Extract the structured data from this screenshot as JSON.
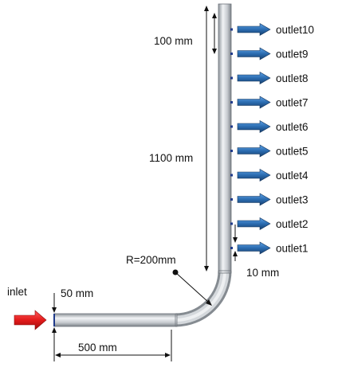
{
  "labels": {
    "inlet": "inlet",
    "pipe_diameter": "50 mm",
    "horizontal_length": "500 mm",
    "bend_radius": "R=200mm",
    "vertical_length": "1100 mm",
    "outlet_spacing": "100 mm",
    "first_outlet_offset": "10 mm"
  },
  "outlets": [
    {
      "label": "outlet10"
    },
    {
      "label": "outlet9"
    },
    {
      "label": "outlet8"
    },
    {
      "label": "outlet7"
    },
    {
      "label": "outlet6"
    },
    {
      "label": "outlet5"
    },
    {
      "label": "outlet4"
    },
    {
      "label": "outlet3"
    },
    {
      "label": "outlet2"
    },
    {
      "label": "outlet1"
    }
  ],
  "colors": {
    "inlet_arrow": "#e31b1b",
    "outlet_arrow": "#2b6cb0",
    "pipe": "#c8ccd0"
  }
}
